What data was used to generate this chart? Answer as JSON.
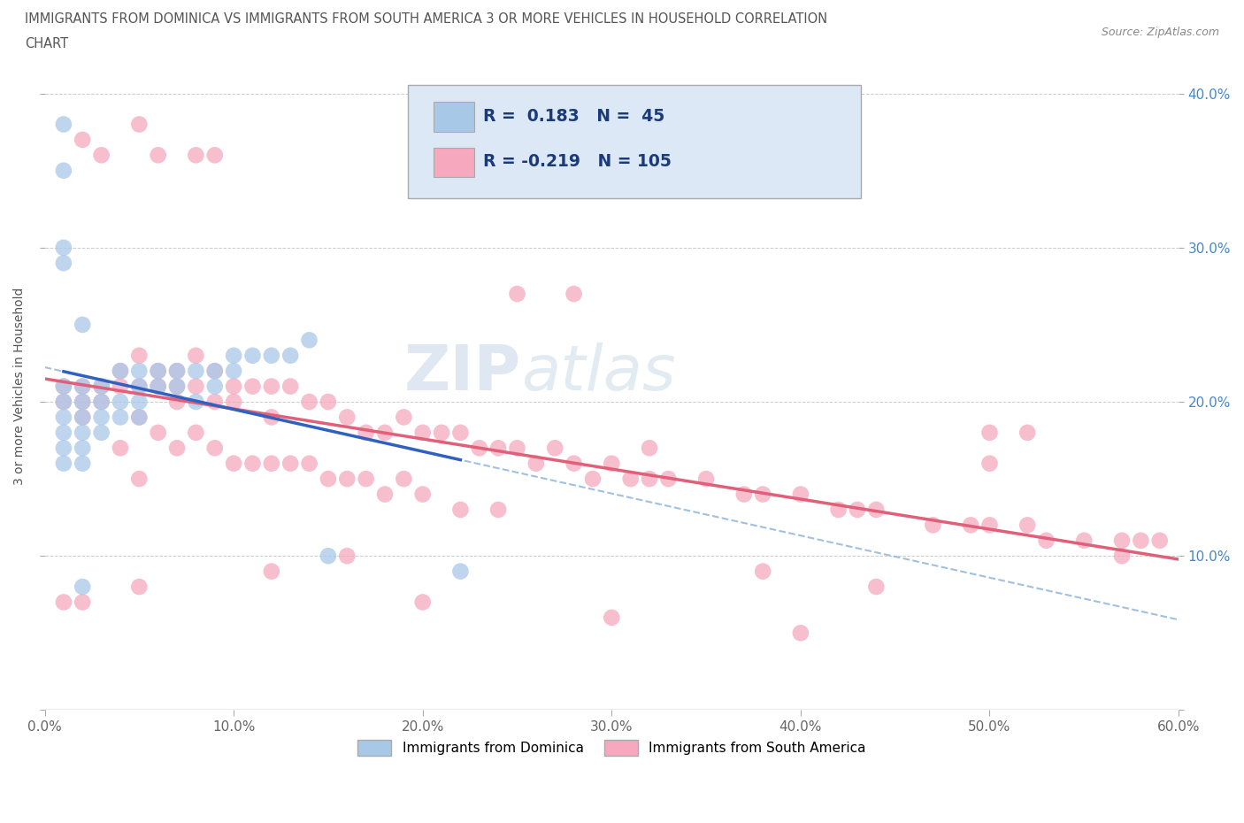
{
  "title_line1": "IMMIGRANTS FROM DOMINICA VS IMMIGRANTS FROM SOUTH AMERICA 3 OR MORE VEHICLES IN HOUSEHOLD CORRELATION",
  "title_line2": "CHART",
  "source": "Source: ZipAtlas.com",
  "ylabel": "3 or more Vehicles in Household",
  "xlim": [
    0.0,
    0.6
  ],
  "ylim": [
    0.0,
    0.42
  ],
  "xticks": [
    0.0,
    0.1,
    0.2,
    0.3,
    0.4,
    0.5,
    0.6
  ],
  "xtick_labels": [
    "0.0%",
    "10.0%",
    "20.0%",
    "30.0%",
    "40.0%",
    "50.0%",
    "60.0%"
  ],
  "yticks": [
    0.0,
    0.1,
    0.2,
    0.3,
    0.4
  ],
  "ytick_right_labels": [
    "",
    "10.0%",
    "20.0%",
    "30.0%",
    "40.0%"
  ],
  "dominica_R": 0.183,
  "dominica_N": 45,
  "southamerica_R": -0.219,
  "southamerica_N": 105,
  "dominica_color": "#a8c8e8",
  "southamerica_color": "#f5a8be",
  "dominica_line_color": "#3060c0",
  "southamerica_line_color": "#e0607a",
  "dominica_trendline_color": "#b0c8e8",
  "watermark_zip": "ZIP",
  "watermark_atlas": "atlas",
  "legend_box_color": "#dce8f5",
  "dominica_x": [
    0.01,
    0.01,
    0.01,
    0.01,
    0.01,
    0.01,
    0.01,
    0.01,
    0.02,
    0.02,
    0.02,
    0.02,
    0.02,
    0.02,
    0.02,
    0.03,
    0.03,
    0.03,
    0.03,
    0.04,
    0.04,
    0.04,
    0.05,
    0.05,
    0.05,
    0.05,
    0.06,
    0.06,
    0.07,
    0.07,
    0.08,
    0.08,
    0.09,
    0.09,
    0.1,
    0.1,
    0.11,
    0.12,
    0.13,
    0.14,
    0.15,
    0.22,
    0.01,
    0.01,
    0.02
  ],
  "dominica_y": [
    0.38,
    0.35,
    0.21,
    0.2,
    0.19,
    0.18,
    0.17,
    0.16,
    0.21,
    0.2,
    0.19,
    0.18,
    0.17,
    0.16,
    0.08,
    0.21,
    0.2,
    0.19,
    0.18,
    0.22,
    0.2,
    0.19,
    0.22,
    0.21,
    0.2,
    0.19,
    0.22,
    0.21,
    0.22,
    0.21,
    0.22,
    0.2,
    0.22,
    0.21,
    0.23,
    0.22,
    0.23,
    0.23,
    0.23,
    0.24,
    0.1,
    0.09,
    0.3,
    0.29,
    0.25
  ],
  "southamerica_x": [
    0.01,
    0.01,
    0.01,
    0.02,
    0.02,
    0.02,
    0.03,
    0.03,
    0.04,
    0.04,
    0.04,
    0.05,
    0.05,
    0.05,
    0.05,
    0.06,
    0.06,
    0.06,
    0.07,
    0.07,
    0.07,
    0.07,
    0.08,
    0.08,
    0.08,
    0.09,
    0.09,
    0.09,
    0.1,
    0.1,
    0.1,
    0.11,
    0.11,
    0.12,
    0.12,
    0.12,
    0.13,
    0.13,
    0.14,
    0.14,
    0.15,
    0.15,
    0.16,
    0.16,
    0.17,
    0.17,
    0.18,
    0.18,
    0.19,
    0.19,
    0.2,
    0.2,
    0.21,
    0.22,
    0.22,
    0.23,
    0.24,
    0.24,
    0.25,
    0.26,
    0.27,
    0.28,
    0.29,
    0.3,
    0.31,
    0.32,
    0.33,
    0.35,
    0.37,
    0.38,
    0.4,
    0.42,
    0.43,
    0.44,
    0.47,
    0.49,
    0.5,
    0.52,
    0.53,
    0.55,
    0.57,
    0.58,
    0.59,
    0.02,
    0.03,
    0.05,
    0.06,
    0.08,
    0.09,
    0.12,
    0.16,
    0.5,
    0.52,
    0.02,
    0.05,
    0.25,
    0.28,
    0.32,
    0.38,
    0.44,
    0.5,
    0.57,
    0.2,
    0.3,
    0.4
  ],
  "southamerica_y": [
    0.21,
    0.2,
    0.07,
    0.21,
    0.2,
    0.19,
    0.21,
    0.2,
    0.22,
    0.21,
    0.17,
    0.23,
    0.21,
    0.19,
    0.15,
    0.22,
    0.21,
    0.18,
    0.22,
    0.21,
    0.2,
    0.17,
    0.23,
    0.21,
    0.18,
    0.22,
    0.2,
    0.17,
    0.21,
    0.2,
    0.16,
    0.21,
    0.16,
    0.21,
    0.19,
    0.16,
    0.21,
    0.16,
    0.2,
    0.16,
    0.2,
    0.15,
    0.19,
    0.15,
    0.18,
    0.15,
    0.18,
    0.14,
    0.19,
    0.15,
    0.18,
    0.14,
    0.18,
    0.18,
    0.13,
    0.17,
    0.17,
    0.13,
    0.17,
    0.16,
    0.17,
    0.16,
    0.15,
    0.16,
    0.15,
    0.15,
    0.15,
    0.15,
    0.14,
    0.14,
    0.14,
    0.13,
    0.13,
    0.13,
    0.12,
    0.12,
    0.12,
    0.12,
    0.11,
    0.11,
    0.11,
    0.11,
    0.11,
    0.37,
    0.36,
    0.38,
    0.36,
    0.36,
    0.36,
    0.09,
    0.1,
    0.18,
    0.18,
    0.07,
    0.08,
    0.27,
    0.27,
    0.17,
    0.09,
    0.08,
    0.16,
    0.1,
    0.07,
    0.06,
    0.05
  ]
}
